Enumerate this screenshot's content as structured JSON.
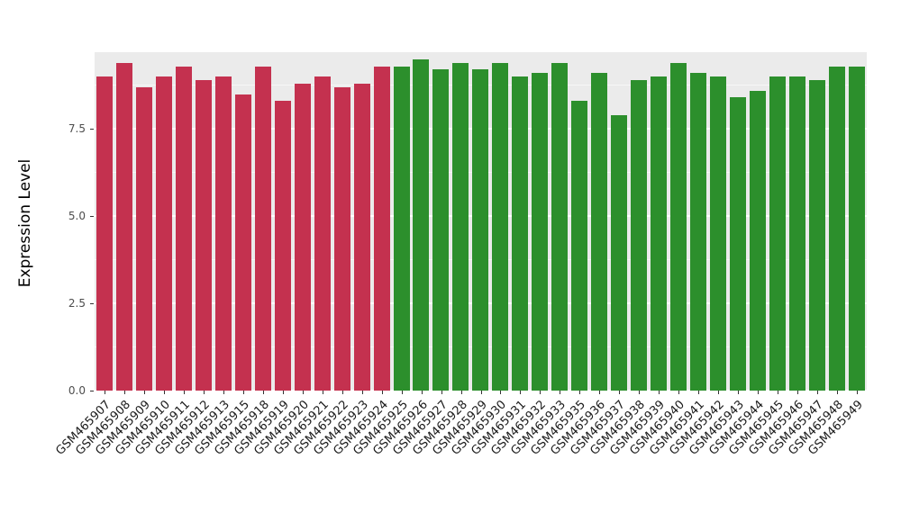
{
  "chart_data": {
    "type": "bar",
    "title": "",
    "xlabel": "",
    "ylabel": "Expression Level",
    "ylim": [
      0,
      9.7
    ],
    "y_breaks": [
      0.0,
      2.5,
      5.0,
      7.5
    ],
    "y_break_labels": [
      "0.0",
      "2.5",
      "5.0",
      "7.5"
    ],
    "y_minor_breaks": [
      1.25,
      3.75,
      6.25,
      8.75
    ],
    "grid": "on",
    "legend": "none",
    "panel_background": "#EBEBEB",
    "group_colors": {
      "red": "#C4314F",
      "green": "#2C8F2C"
    },
    "bars": [
      {
        "label": "GSM465907",
        "value": 9.0,
        "group": "red"
      },
      {
        "label": "GSM465908",
        "value": 9.4,
        "group": "red"
      },
      {
        "label": "GSM465909",
        "value": 8.7,
        "group": "red"
      },
      {
        "label": "GSM465910",
        "value": 9.0,
        "group": "red"
      },
      {
        "label": "GSM465911",
        "value": 9.3,
        "group": "red"
      },
      {
        "label": "GSM465912",
        "value": 8.9,
        "group": "red"
      },
      {
        "label": "GSM465913",
        "value": 9.0,
        "group": "red"
      },
      {
        "label": "GSM465915",
        "value": 8.5,
        "group": "red"
      },
      {
        "label": "GSM465918",
        "value": 9.3,
        "group": "red"
      },
      {
        "label": "GSM465919",
        "value": 8.3,
        "group": "red"
      },
      {
        "label": "GSM465920",
        "value": 8.8,
        "group": "red"
      },
      {
        "label": "GSM465921",
        "value": 9.0,
        "group": "red"
      },
      {
        "label": "GSM465922",
        "value": 8.7,
        "group": "red"
      },
      {
        "label": "GSM465923",
        "value": 8.8,
        "group": "red"
      },
      {
        "label": "GSM465924",
        "value": 9.3,
        "group": "red"
      },
      {
        "label": "GSM465925",
        "value": 9.3,
        "group": "green"
      },
      {
        "label": "GSM465926",
        "value": 9.5,
        "group": "green"
      },
      {
        "label": "GSM465927",
        "value": 9.2,
        "group": "green"
      },
      {
        "label": "GSM465928",
        "value": 9.4,
        "group": "green"
      },
      {
        "label": "GSM465929",
        "value": 9.2,
        "group": "green"
      },
      {
        "label": "GSM465930",
        "value": 9.4,
        "group": "green"
      },
      {
        "label": "GSM465931",
        "value": 9.0,
        "group": "green"
      },
      {
        "label": "GSM465932",
        "value": 9.1,
        "group": "green"
      },
      {
        "label": "GSM465933",
        "value": 9.4,
        "group": "green"
      },
      {
        "label": "GSM465935",
        "value": 8.3,
        "group": "green"
      },
      {
        "label": "GSM465936",
        "value": 9.1,
        "group": "green"
      },
      {
        "label": "GSM465937",
        "value": 7.9,
        "group": "green"
      },
      {
        "label": "GSM465938",
        "value": 8.9,
        "group": "green"
      },
      {
        "label": "GSM465939",
        "value": 9.0,
        "group": "green"
      },
      {
        "label": "GSM465940",
        "value": 9.4,
        "group": "green"
      },
      {
        "label": "GSM465941",
        "value": 9.1,
        "group": "green"
      },
      {
        "label": "GSM465942",
        "value": 9.0,
        "group": "green"
      },
      {
        "label": "GSM465943",
        "value": 8.4,
        "group": "green"
      },
      {
        "label": "GSM465944",
        "value": 8.6,
        "group": "green"
      },
      {
        "label": "GSM465945",
        "value": 9.0,
        "group": "green"
      },
      {
        "label": "GSM465946",
        "value": 9.0,
        "group": "green"
      },
      {
        "label": "GSM465947",
        "value": 8.9,
        "group": "green"
      },
      {
        "label": "GSM465948",
        "value": 9.3,
        "group": "green"
      },
      {
        "label": "GSM465949",
        "value": 9.3,
        "group": "green"
      }
    ]
  }
}
